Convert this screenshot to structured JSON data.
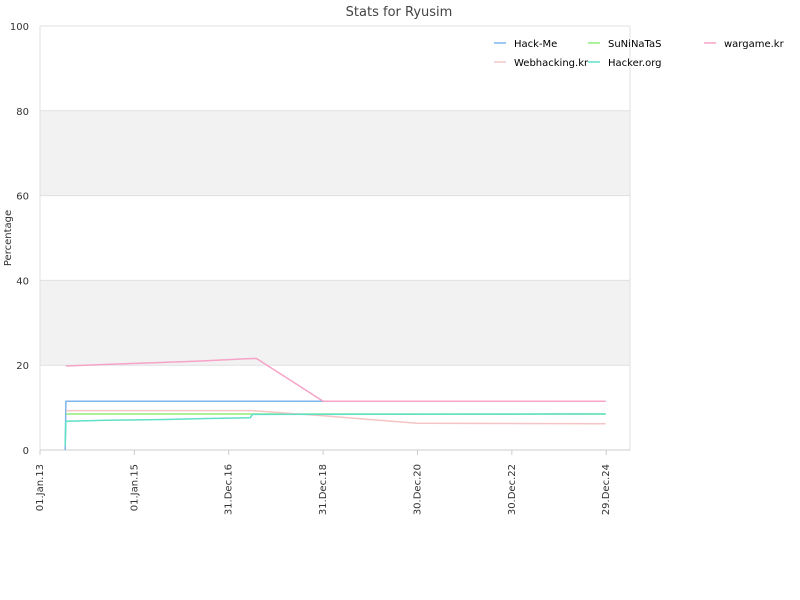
{
  "chart_data": {
    "type": "line",
    "title": "Stats for Ryusim",
    "xlabel": "",
    "ylabel": "Percentage",
    "x_ticks": [
      "01.Jan.13",
      "01.Jan.15",
      "31.Dec.16",
      "31.Dec.18",
      "30.Dec.20",
      "30.Dec.22",
      "29.Dec.24"
    ],
    "y_ticks": [
      "0",
      "20",
      "40",
      "60",
      "80",
      "100"
    ],
    "ylim": [
      0,
      100
    ],
    "xlim": [
      "2013-01-01",
      "2025-07-01"
    ],
    "grid": true,
    "legend_position": "top-right",
    "series": [
      {
        "name": "Hack-Me",
        "color": "#7cb5ec",
        "points": [
          [
            "2013-07-15",
            0
          ],
          [
            "2013-07-20",
            11.5
          ],
          [
            "2017-06-01",
            11.5
          ],
          [
            "2018-12-31",
            11.5
          ],
          [
            "2024-12-25",
            11.5
          ]
        ]
      },
      {
        "name": "SuNiNaTaS",
        "color": "#90ed7d",
        "points": [
          [
            "2013-07-20",
            8.5
          ],
          [
            "2024-12-25",
            8.5
          ]
        ]
      },
      {
        "name": "wargame.kr",
        "color": "#f7a3c7",
        "points": [
          [
            "2013-07-20",
            19.8
          ],
          [
            "2014-06-01",
            20.2
          ],
          [
            "2015-06-01",
            20.6
          ],
          [
            "2016-06-01",
            21.0
          ],
          [
            "2017-05-15",
            21.5
          ],
          [
            "2017-08-01",
            21.6
          ],
          [
            "2018-12-31",
            11.5
          ],
          [
            "2024-12-25",
            11.5
          ]
        ]
      },
      {
        "name": "Webhacking.kr",
        "color": "#f6c4c4",
        "points": [
          [
            "2013-07-20",
            9.3
          ],
          [
            "2017-07-01",
            9.3
          ],
          [
            "2018-12-31",
            8.1
          ],
          [
            "2020-12-30",
            6.3
          ],
          [
            "2024-12-25",
            6.2
          ]
        ]
      },
      {
        "name": "Hacker.org",
        "color": "#5fe0c7",
        "points": [
          [
            "2013-07-15",
            1.0
          ],
          [
            "2013-07-20",
            6.8
          ],
          [
            "2014-06-01",
            7.0
          ],
          [
            "2015-09-01",
            7.2
          ],
          [
            "2016-06-01",
            7.4
          ],
          [
            "2017-06-15",
            7.6
          ],
          [
            "2017-07-01",
            8.4
          ],
          [
            "2024-12-25",
            8.5
          ]
        ]
      }
    ]
  }
}
